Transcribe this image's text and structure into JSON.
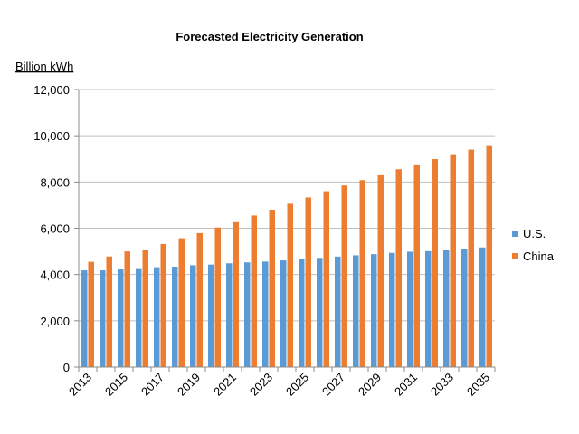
{
  "chart_data": {
    "type": "bar",
    "title": "Forecasted Electricity Generation",
    "ylabel": "Billion kWh",
    "xlabel": "",
    "ylim": [
      0,
      12000
    ],
    "yticks": [
      0,
      2000,
      4000,
      6000,
      8000,
      10000,
      12000
    ],
    "ytick_labels": [
      "0",
      "2,000",
      "4,000",
      "6,000",
      "8,000",
      "10,000",
      "12,000"
    ],
    "grid": true,
    "legend": "right",
    "categories": [
      "2013",
      "2014",
      "2015",
      "2016",
      "2017",
      "2018",
      "2019",
      "2020",
      "2021",
      "2022",
      "2023",
      "2024",
      "2025",
      "2026",
      "2027",
      "2028",
      "2029",
      "2030",
      "2031",
      "2032",
      "2033",
      "2034",
      "2035"
    ],
    "xtick_labels": [
      "2013",
      "2015",
      "2017",
      "2019",
      "2021",
      "2023",
      "2025",
      "2027",
      "2029",
      "2031",
      "2033",
      "2035"
    ],
    "series": [
      {
        "name": "U.S.",
        "color": "#5b9bd5",
        "values": [
          4180,
          4180,
          4240,
          4275,
          4315,
          4340,
          4400,
          4430,
          4485,
          4525,
          4560,
          4610,
          4670,
          4720,
          4775,
          4830,
          4880,
          4935,
          4985,
          5010,
          5065,
          5120,
          5170
        ]
      },
      {
        "name": "China",
        "color": "#ed7d31",
        "values": [
          4550,
          4780,
          5000,
          5080,
          5320,
          5565,
          5790,
          6030,
          6300,
          6550,
          6800,
          7060,
          7330,
          7600,
          7850,
          8080,
          8330,
          8550,
          8760,
          8990,
          9200,
          9400,
          9590
        ]
      }
    ]
  }
}
